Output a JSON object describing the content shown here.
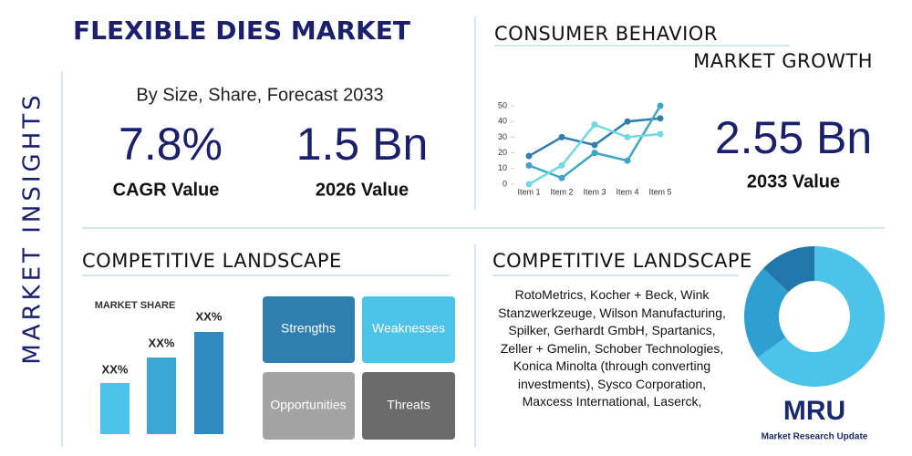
{
  "side_label": "MARKET INSIGHTS",
  "header": {
    "title": "FLEXIBLE DIES MARKET",
    "subtitle": "By Size, Share, Forecast 2033"
  },
  "stats": [
    {
      "value": "7.8%",
      "label": "CAGR Value"
    },
    {
      "value": "1.5 Bn",
      "label": "2026 Value"
    },
    {
      "value": "2.55 Bn",
      "label": "2033 Value"
    }
  ],
  "consumer": {
    "title": "CONSUMER BEHAVIOR",
    "subtitle": "MARKET GROWTH",
    "chart_data": {
      "type": "line",
      "categories": [
        "Item 1",
        "Item 2",
        "Item 3",
        "Item 4",
        "Item 5"
      ],
      "series": [
        {
          "color": "#2e7fb0",
          "values": [
            18,
            30,
            25,
            40,
            42
          ]
        },
        {
          "color": "#3aa7c9",
          "values": [
            12,
            4,
            20,
            15,
            50
          ]
        },
        {
          "color": "#6fd9e4",
          "values": [
            0,
            12,
            38,
            30,
            32
          ]
        }
      ],
      "ylim": [
        0,
        50
      ],
      "yticks": [
        0,
        10,
        20,
        30,
        40,
        50
      ]
    }
  },
  "competitive_left": {
    "title": "COMPETITIVE LANDSCAPE",
    "market_share": "MARKET SHARE",
    "bar_labels": [
      "XX%",
      "XX%",
      "XX%"
    ],
    "swot": [
      "Strengths",
      "Weaknesses",
      "Opportunities",
      "Threats"
    ]
  },
  "competitive_right": {
    "title": "COMPETITIVE LANDSCAPE",
    "companies": "RotoMetrics, Kocher + Beck, Wink Stanzwerkzeuge, Wilson Manufacturing, Spilker, Gerhardt GmbH, Spartanics, Zeller + Gmelin, Schober Technologies, Konica Minolta (through converting investments), Sysco Corporation, Maxcess International, Laserck,",
    "chart_data": {
      "type": "donut",
      "values": [
        65,
        22,
        13
      ],
      "colors": [
        "#4cc3e8",
        "#2e9fd0",
        "#2277aa"
      ]
    }
  },
  "logo": {
    "mark": "MRU",
    "name": "Market Research Update"
  }
}
